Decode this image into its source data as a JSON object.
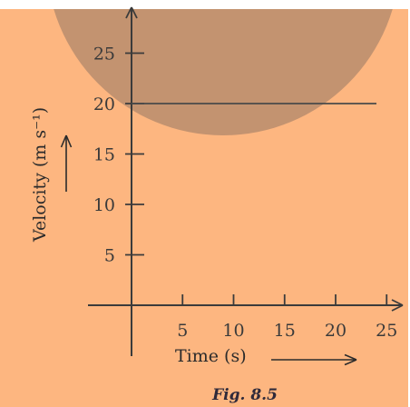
{
  "colors": {
    "background": "#fdb680",
    "watermark": "#c39370",
    "axis": "#3b3b3b",
    "series": "#4a4a4a",
    "text": "#2b2b2b"
  },
  "caption": "Fig. 8.5",
  "chart_data": {
    "type": "line",
    "title": "",
    "xlabel": "Time (s)",
    "ylabel": "Velocity (m s⁻¹)",
    "xlim": [
      0,
      25
    ],
    "ylim": [
      0,
      25
    ],
    "x_ticks": [
      5,
      10,
      15,
      20,
      25
    ],
    "y_ticks": [
      5,
      10,
      15,
      20,
      25
    ],
    "x_tick_labels": [
      "5",
      "10",
      "15",
      "20",
      "25"
    ],
    "y_tick_labels": [
      "5",
      "10",
      "15",
      "20",
      "25"
    ],
    "grid": false,
    "legend": "none",
    "series": [
      {
        "x": [
          0,
          24
        ],
        "y": [
          20,
          20
        ]
      }
    ]
  }
}
